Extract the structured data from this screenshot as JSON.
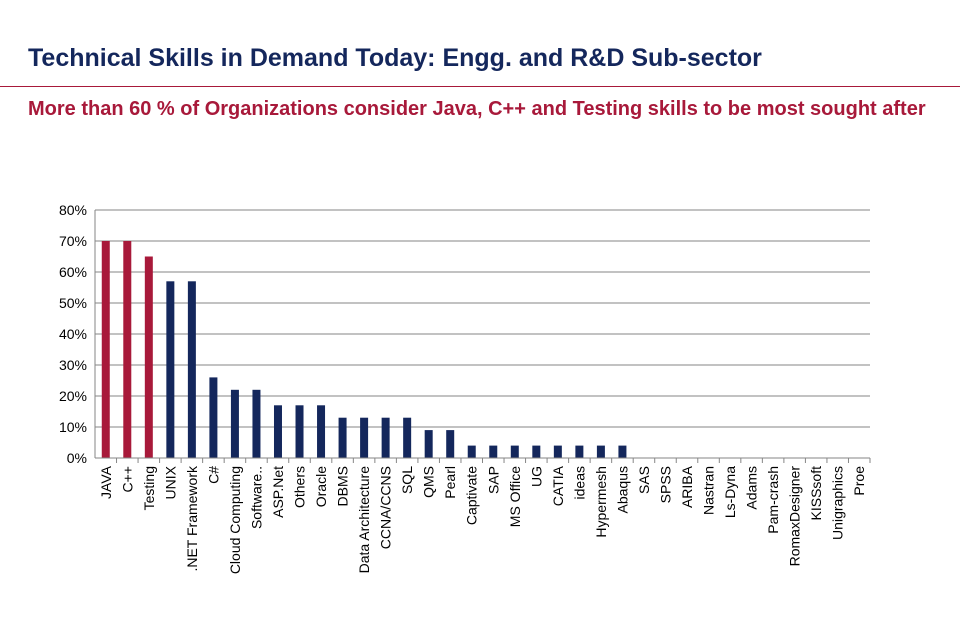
{
  "header": {
    "title": "Technical Skills in Demand Today: Engg. and R&D Sub-sector",
    "subtitle": "More than 60 % of Organizations consider Java, C++ and Testing skills to be most sought after"
  },
  "colors": {
    "title": "#14275c",
    "accent": "#a8193a",
    "highlight_bar": "#a8193a",
    "default_bar": "#14275c",
    "gridline": "#868686"
  },
  "chart_data": {
    "type": "bar",
    "title": "",
    "xlabel": "",
    "ylabel": "",
    "ylim": [
      0,
      0.8
    ],
    "yticks": [
      "0%",
      "10%",
      "20%",
      "30%",
      "40%",
      "50%",
      "60%",
      "70%",
      "80%"
    ],
    "grid": true,
    "legend": "none",
    "categories": [
      "JAVA",
      "C++",
      "Testing",
      "UNIX",
      ".NET Framework",
      "C#",
      "Cloud Computing",
      "Software..",
      "ASP.Net",
      "Others",
      "Oracle",
      "DBMS",
      "Data Architecture",
      "CCNA/CCNS",
      "SQL",
      "QMS",
      "Pearl",
      "Captivate",
      "SAP",
      "MS Office",
      "UG",
      "CATIA",
      "ideas",
      "Hypermesh",
      "Abaqus",
      "SAS",
      "SPSS",
      "ARIBA",
      "Nastran",
      "Ls-Dyna",
      "Adams",
      "Pam-crash",
      "RomaxDesigner",
      "KISSsoft",
      "Unigraphics",
      "Proe"
    ],
    "values": [
      0.7,
      0.7,
      0.65,
      0.57,
      0.57,
      0.26,
      0.22,
      0.22,
      0.17,
      0.17,
      0.17,
      0.13,
      0.13,
      0.13,
      0.13,
      0.09,
      0.09,
      0.04,
      0.04,
      0.04,
      0.04,
      0.04,
      0.04,
      0.04,
      0.04,
      0,
      0,
      0,
      0,
      0,
      0,
      0,
      0,
      0,
      0,
      0
    ],
    "highlighted": [
      "JAVA",
      "C++",
      "Testing"
    ]
  }
}
